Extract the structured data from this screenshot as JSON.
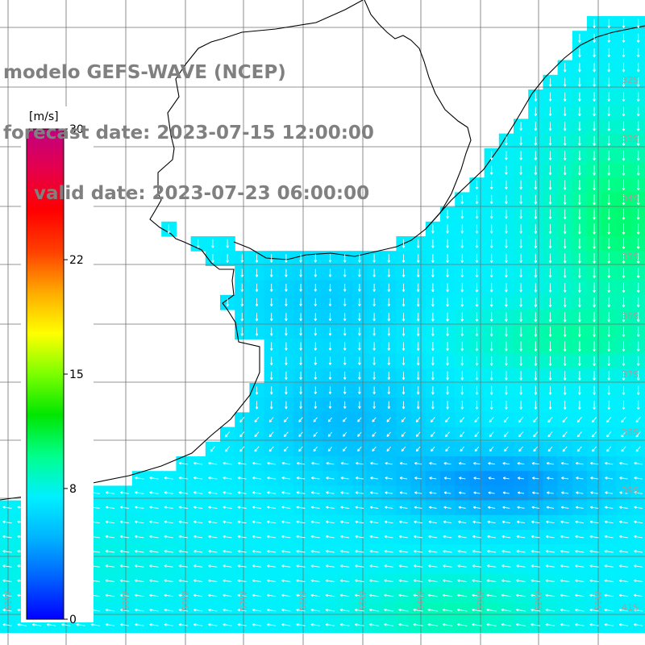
{
  "title": {
    "line1": "modelo GEFS-WAVE (NCEP)",
    "line2": "forecast date: 2023-07-15 12:00:00",
    "line3": "valid date: 2023-07-23 06:00:00"
  },
  "colorbar": {
    "unit_label": "[m/s]",
    "min": 0,
    "max": 30,
    "ticks": [
      "30",
      "22",
      "15",
      "8",
      "0"
    ],
    "tick_values": [
      30,
      22,
      15,
      8,
      0
    ],
    "palette": [
      "#0000ff",
      "#0060ff",
      "#00b4ff",
      "#00f0ff",
      "#00ff8c",
      "#00e600",
      "#7cff00",
      "#ffff00",
      "#ffaa00",
      "#ff4000",
      "#ff0000",
      "#e6004c",
      "#c00080"
    ]
  },
  "axes": {
    "lon_labels": [
      "61W",
      "60W",
      "59W",
      "58W",
      "57W",
      "56W",
      "55W",
      "54W",
      "53W",
      "52W",
      "51W"
    ],
    "lat_labels": [
      "32S",
      "33S",
      "34S",
      "35S",
      "36S",
      "37S",
      "38S",
      "39S",
      "41S"
    ]
  },
  "field": {
    "description_colors": {
      "land": "#ffffff",
      "grid": "#707070",
      "coast": "#000000",
      "arrow": "#ffffff"
    }
  }
}
